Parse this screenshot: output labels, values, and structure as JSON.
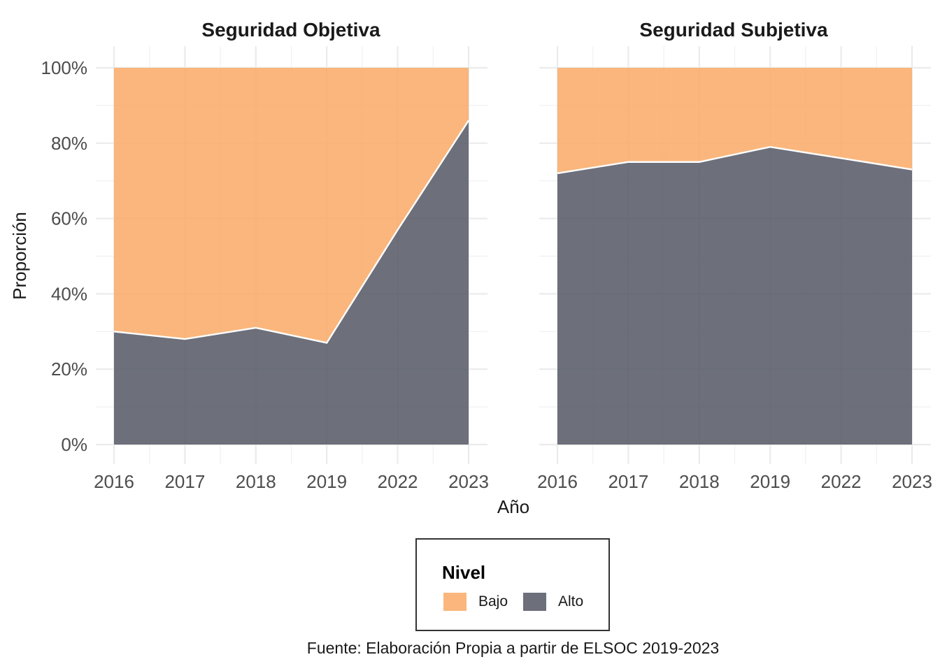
{
  "chart_data": {
    "type": "area",
    "stacked": true,
    "normalized": true,
    "categories": [
      "2016",
      "2017",
      "2018",
      "2019",
      "2022",
      "2023"
    ],
    "ylabel": "Proporción",
    "xlabel": "Año",
    "y_ticks": [
      "0%",
      "20%",
      "40%",
      "60%",
      "80%",
      "100%"
    ],
    "ylim": [
      0,
      1
    ],
    "grid": true,
    "legend": {
      "title": "Nivel",
      "placement": "bottom",
      "items": [
        {
          "label": "Bajo",
          "color": "#f9a965"
        },
        {
          "label": "Alto",
          "color": "#535764"
        }
      ]
    },
    "panels": [
      {
        "title": "Seguridad Objetiva",
        "series": [
          {
            "name": "Alto",
            "values": [
              0.3,
              0.28,
              0.31,
              0.27,
              0.57,
              0.86
            ]
          },
          {
            "name": "Bajo",
            "values": [
              0.7,
              0.72,
              0.69,
              0.73,
              0.43,
              0.14
            ]
          }
        ]
      },
      {
        "title": "Seguridad Subjetiva",
        "series": [
          {
            "name": "Alto",
            "values": [
              0.72,
              0.75,
              0.75,
              0.79,
              0.76,
              0.73
            ]
          },
          {
            "name": "Bajo",
            "values": [
              0.28,
              0.25,
              0.25,
              0.21,
              0.24,
              0.27
            ]
          }
        ]
      }
    ]
  },
  "caption": "Fuente: Elaboración Propia a partir de ELSOC 2019-2023"
}
